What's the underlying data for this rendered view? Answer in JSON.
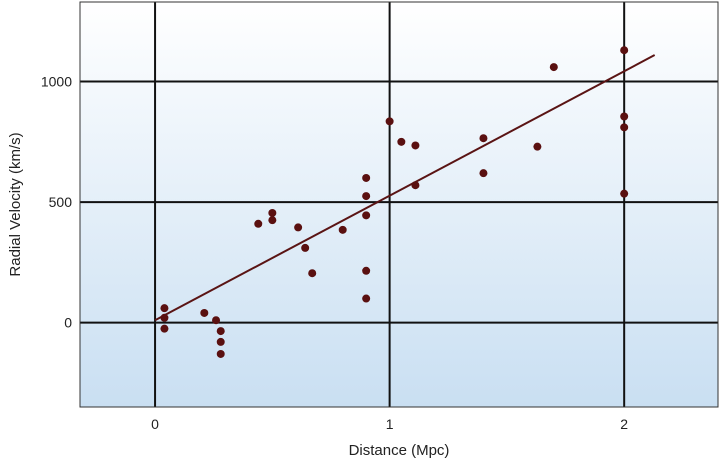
{
  "chart_data": {
    "type": "scatter",
    "title": "",
    "xlabel": "Distance (Mpc)",
    "ylabel": "Radial Velocity (km/s)",
    "xlim": [
      -0.32,
      2.4
    ],
    "ylim": [
      -350,
      1330
    ],
    "x_ticks": [
      0,
      1,
      2
    ],
    "x_tick_labels": [
      "0",
      "1",
      "2"
    ],
    "y_ticks": [
      0,
      500,
      1000
    ],
    "y_tick_labels": [
      "0",
      "500",
      "1000"
    ],
    "grid": true,
    "legend": "none",
    "series": [
      {
        "points": [
          {
            "x": 0.04,
            "y": 60
          },
          {
            "x": 0.04,
            "y": 20
          },
          {
            "x": 0.04,
            "y": -25
          },
          {
            "x": 0.21,
            "y": 40
          },
          {
            "x": 0.26,
            "y": 10
          },
          {
            "x": 0.28,
            "y": -35
          },
          {
            "x": 0.28,
            "y": -80
          },
          {
            "x": 0.28,
            "y": -130
          },
          {
            "x": 0.44,
            "y": 410
          },
          {
            "x": 0.5,
            "y": 455
          },
          {
            "x": 0.5,
            "y": 425
          },
          {
            "x": 0.61,
            "y": 395
          },
          {
            "x": 0.64,
            "y": 310
          },
          {
            "x": 0.67,
            "y": 205
          },
          {
            "x": 0.8,
            "y": 385
          },
          {
            "x": 0.9,
            "y": 600
          },
          {
            "x": 0.9,
            "y": 525
          },
          {
            "x": 0.9,
            "y": 445
          },
          {
            "x": 0.9,
            "y": 215
          },
          {
            "x": 0.9,
            "y": 100
          },
          {
            "x": 1.0,
            "y": 835
          },
          {
            "x": 1.05,
            "y": 750
          },
          {
            "x": 1.11,
            "y": 735
          },
          {
            "x": 1.11,
            "y": 570
          },
          {
            "x": 1.4,
            "y": 765
          },
          {
            "x": 1.4,
            "y": 620
          },
          {
            "x": 1.63,
            "y": 730
          },
          {
            "x": 1.7,
            "y": 1060
          },
          {
            "x": 2.0,
            "y": 1130
          },
          {
            "x": 2.0,
            "y": 855
          },
          {
            "x": 2.0,
            "y": 810
          },
          {
            "x": 2.0,
            "y": 535
          }
        ]
      }
    ],
    "fit_line": {
      "x": [
        0,
        2.13
      ],
      "y": [
        10,
        1110
      ]
    },
    "colors": {
      "point": "#5a1010",
      "line": "#5a1414",
      "grid": "#111111",
      "background_top": "#ffffff",
      "background_bottom": "#c9dff2"
    }
  }
}
